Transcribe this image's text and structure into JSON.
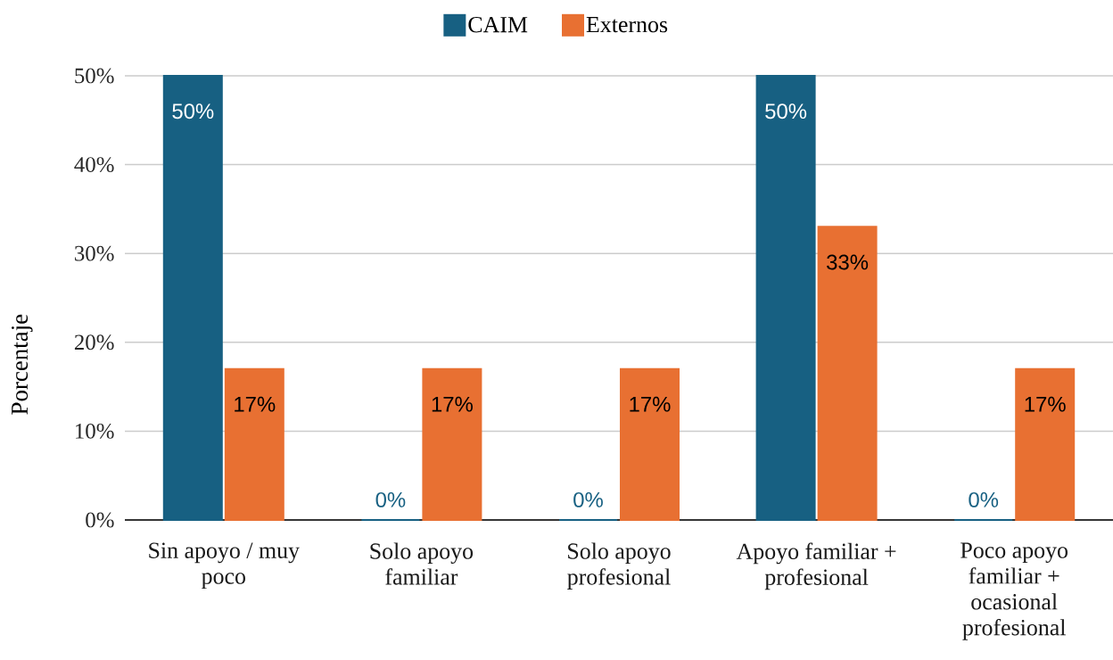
{
  "chart_data": {
    "type": "bar",
    "categories": [
      "Sin apoyo / muy poco",
      "Solo apoyo familiar",
      "Solo apoyo profesional",
      "Apoyo familiar + profesional",
      "Poco apoyo familiar + ocasional profesional"
    ],
    "series": [
      {
        "name": "CAIM",
        "color": "#176082",
        "values": [
          50,
          0,
          0,
          50,
          0
        ],
        "value_labels": [
          "50%",
          "0%",
          "0%",
          "50%",
          "0%"
        ]
      },
      {
        "name": "Externos",
        "color": "#e87032",
        "values": [
          17,
          17,
          17,
          33,
          17
        ],
        "value_labels": [
          "17%",
          "17%",
          "17%",
          "33%",
          "17%"
        ]
      }
    ],
    "ylabel": "Porcentaje",
    "ylim": [
      0,
      50
    ],
    "yticks": [
      {
        "value": 0,
        "label": "0%"
      },
      {
        "value": 10,
        "label": "10%"
      },
      {
        "value": 20,
        "label": "20%"
      },
      {
        "value": 30,
        "label": "30%"
      },
      {
        "value": 40,
        "label": "40%"
      },
      {
        "value": 50,
        "label": "50%"
      }
    ],
    "grid": "y",
    "legend": "top"
  }
}
